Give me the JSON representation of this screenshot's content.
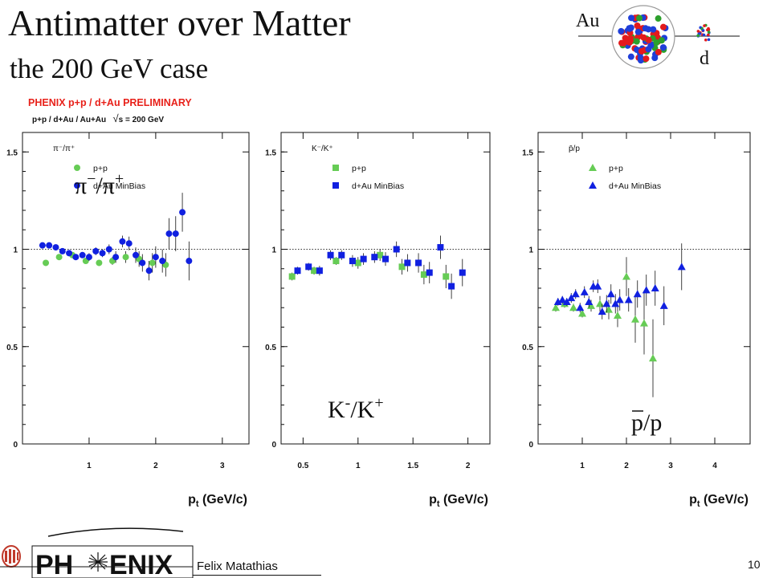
{
  "slide": {
    "title": "Antimatter over Matter",
    "subtitle": "the 200 GeV case",
    "preliminary": "PHENIX p+p / d+Au PRELIMINARY",
    "energy_prefix": "p+p / d+Au / Au+Au",
    "energy_suffix": "s = 200 GeV",
    "author": "Felix Matathias",
    "page_number": "10",
    "logo_text_left": "PH",
    "logo_text_right": "ENIX",
    "diagram_au": "Au",
    "diagram_d": "d"
  },
  "colors": {
    "pp_green": "#66cc55",
    "dau_blue": "#1020e0",
    "prelim_red": "#e8211a"
  },
  "chart_data": [
    {
      "type": "scatter",
      "ratio_label": "π⁻/π⁺",
      "big_label_base": "π",
      "big_label_sup1": "−",
      "big_label_mid": "/π",
      "big_label_sup2": "+",
      "marker": "circle",
      "xlabel": "p",
      "xlabel_sub": "t",
      "xlabel_unit": " (GeV/c)",
      "xlim": [
        0,
        3.4
      ],
      "ylim": [
        0,
        1.6
      ],
      "xticks": [
        1,
        2,
        3
      ],
      "yticks": [
        0,
        0.5,
        1,
        1.5
      ],
      "ytick_labels": [
        "0",
        "0.5",
        "1",
        "1.5"
      ],
      "reference_line": 1,
      "legend": [
        "p+p",
        "d+Au  MinBias"
      ],
      "series": [
        {
          "name": "p+p",
          "x": [
            0.35,
            0.55,
            0.75,
            0.95,
            1.15,
            1.35,
            1.55,
            1.75,
            1.95,
            2.15
          ],
          "y": [
            0.93,
            0.96,
            0.97,
            0.94,
            0.93,
            0.94,
            0.96,
            0.95,
            0.93,
            0.92
          ],
          "err": [
            0.01,
            0.01,
            0.01,
            0.01,
            0.015,
            0.02,
            0.03,
            0.04,
            0.05,
            0.06
          ]
        },
        {
          "name": "d+Au  MinBias",
          "x": [
            0.3,
            0.4,
            0.5,
            0.6,
            0.7,
            0.8,
            0.9,
            1.0,
            1.1,
            1.2,
            1.3,
            1.4,
            1.5,
            1.6,
            1.7,
            1.8,
            1.9,
            2.0,
            2.1,
            2.2,
            2.3,
            2.4,
            2.5
          ],
          "y": [
            1.02,
            1.02,
            1.01,
            0.99,
            0.98,
            0.96,
            0.97,
            0.96,
            0.99,
            0.98,
            1.0,
            0.96,
            1.04,
            1.03,
            0.97,
            0.93,
            0.89,
            0.96,
            0.94,
            1.08,
            1.08,
            1.19,
            0.94
          ],
          "err": [
            0.01,
            0.01,
            0.01,
            0.01,
            0.015,
            0.015,
            0.015,
            0.02,
            0.02,
            0.02,
            0.025,
            0.03,
            0.03,
            0.035,
            0.04,
            0.045,
            0.05,
            0.055,
            0.06,
            0.08,
            0.09,
            0.1,
            0.1
          ]
        }
      ]
    },
    {
      "type": "scatter",
      "ratio_label": "K⁻/K⁺",
      "big_label_base": "K",
      "big_label_sup1": "-",
      "big_label_mid": "/K",
      "big_label_sup2": "+",
      "marker": "square",
      "xlabel": "p",
      "xlabel_sub": "t",
      "xlabel_unit": " (GeV/c)",
      "xlim": [
        0.3,
        2.2
      ],
      "ylim": [
        0,
        1.6
      ],
      "xticks": [
        0.5,
        1,
        1.5,
        2
      ],
      "yticks": [
        0,
        0.5,
        1,
        1.5
      ],
      "ytick_labels": [
        "0",
        "0.5",
        "1",
        "1.5"
      ],
      "reference_line": 1,
      "legend": [
        "p+p",
        "d+Au  MinBias"
      ],
      "series": [
        {
          "name": "p+p",
          "x": [
            0.4,
            0.6,
            0.8,
            1.0,
            1.2,
            1.4,
            1.6,
            1.8
          ],
          "y": [
            0.86,
            0.89,
            0.94,
            0.93,
            0.97,
            0.91,
            0.87,
            0.86
          ],
          "err": [
            0.02,
            0.02,
            0.02,
            0.03,
            0.03,
            0.04,
            0.05,
            0.06
          ]
        },
        {
          "name": "d+Au  MinBias",
          "x": [
            0.45,
            0.55,
            0.65,
            0.75,
            0.85,
            0.95,
            1.05,
            1.15,
            1.25,
            1.35,
            1.45,
            1.55,
            1.65,
            1.75,
            1.85,
            1.95
          ],
          "y": [
            0.89,
            0.91,
            0.89,
            0.97,
            0.97,
            0.94,
            0.95,
            0.96,
            0.95,
            1.0,
            0.93,
            0.93,
            0.88,
            1.01,
            0.81,
            0.88
          ],
          "err": [
            0.02,
            0.02,
            0.025,
            0.025,
            0.025,
            0.03,
            0.03,
            0.03,
            0.035,
            0.04,
            0.045,
            0.05,
            0.055,
            0.06,
            0.065,
            0.07
          ]
        }
      ]
    },
    {
      "type": "scatter",
      "ratio_label": "p̄/p",
      "big_label_base": "p",
      "big_label_sup1": "",
      "big_label_mid": "/p",
      "big_label_sup2": "",
      "marker": "triangle",
      "xlabel": "p",
      "xlabel_sub": "t",
      "xlabel_unit": " (GeV/c)",
      "xlim": [
        0,
        4.8
      ],
      "ylim": [
        0,
        1.6
      ],
      "xticks": [
        1,
        2,
        3,
        4
      ],
      "yticks": [
        0,
        0.5,
        1,
        1.5
      ],
      "ytick_labels": [
        "0",
        "0.5",
        "1",
        "1.5"
      ],
      "reference_line": 1,
      "legend": [
        "p+p",
        "d+Au  MinBias"
      ],
      "series": [
        {
          "name": "p+p",
          "x": [
            0.4,
            0.6,
            0.8,
            1.0,
            1.2,
            1.4,
            1.6,
            1.8,
            2.0,
            2.2,
            2.4,
            2.6
          ],
          "y": [
            0.7,
            0.72,
            0.7,
            0.67,
            0.71,
            0.72,
            0.69,
            0.66,
            0.86,
            0.64,
            0.62,
            0.44
          ],
          "err": [
            0.02,
            0.02,
            0.02,
            0.02,
            0.03,
            0.04,
            0.05,
            0.06,
            0.1,
            0.12,
            0.16,
            0.2
          ]
        },
        {
          "name": "d+Au  MinBias",
          "x": [
            0.45,
            0.55,
            0.65,
            0.75,
            0.85,
            0.95,
            1.05,
            1.15,
            1.25,
            1.35,
            1.45,
            1.55,
            1.65,
            1.75,
            1.85,
            2.05,
            2.25,
            2.45,
            2.65,
            2.85,
            3.25
          ],
          "y": [
            0.73,
            0.74,
            0.73,
            0.75,
            0.77,
            0.7,
            0.78,
            0.73,
            0.81,
            0.81,
            0.68,
            0.72,
            0.77,
            0.72,
            0.74,
            0.74,
            0.77,
            0.79,
            0.8,
            0.71,
            0.91
          ],
          "err": [
            0.02,
            0.02,
            0.02,
            0.025,
            0.025,
            0.025,
            0.03,
            0.03,
            0.03,
            0.035,
            0.04,
            0.045,
            0.05,
            0.05,
            0.055,
            0.06,
            0.07,
            0.08,
            0.09,
            0.1,
            0.12
          ]
        }
      ]
    }
  ]
}
